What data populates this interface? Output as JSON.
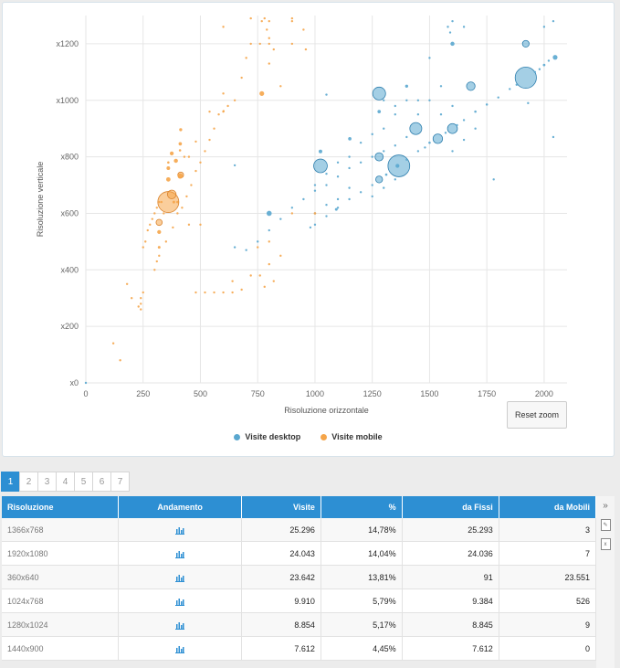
{
  "chart_data": {
    "type": "scatter",
    "xlabel": "Risoluzione orizzontale",
    "ylabel": "Risoluzione verticale",
    "xlim": [
      0,
      2100
    ],
    "ylim": [
      0,
      1300
    ],
    "x_ticks": [
      0,
      250,
      500,
      750,
      1000,
      1250,
      1500,
      1750,
      2000
    ],
    "y_ticks": [
      0,
      200,
      400,
      600,
      800,
      1000,
      1200
    ],
    "y_tick_labels": [
      "x0",
      "x200",
      "x400",
      "x600",
      "x800",
      "x1000",
      "x1200"
    ],
    "series": [
      {
        "name": "Visite desktop",
        "color": "#5aa7cf",
        "points": [
          [
            1366,
            768,
            25296
          ],
          [
            1920,
            1080,
            24043
          ],
          [
            1024,
            768,
            9910
          ],
          [
            1280,
            1024,
            8854
          ],
          [
            1440,
            900,
            7612
          ],
          [
            1600,
            900,
            5200
          ],
          [
            1536,
            864,
            4800
          ],
          [
            1680,
            1050,
            3900
          ],
          [
            1280,
            800,
            3600
          ],
          [
            1280,
            720,
            2500
          ],
          [
            1920,
            1200,
            2400
          ],
          [
            800,
            600,
            1400
          ],
          [
            2048,
            1152,
            1200
          ],
          [
            1600,
            1200,
            900
          ],
          [
            1024,
            819,
            700
          ],
          [
            1280,
            960,
            600
          ],
          [
            1400,
            1050,
            500
          ],
          [
            1360,
            768,
            800
          ],
          [
            1152,
            864,
            600
          ],
          [
            1093,
            614,
            400
          ],
          [
            1311,
            737,
            300
          ],
          [
            1500,
            850,
            300
          ],
          [
            1450,
            820,
            250
          ],
          [
            1250,
            700,
            220
          ],
          [
            1200,
            675,
            200
          ],
          [
            1150,
            650,
            180
          ],
          [
            1100,
            620,
            160
          ],
          [
            1050,
            590,
            150
          ],
          [
            1000,
            560,
            140
          ],
          [
            980,
            550,
            120
          ],
          [
            1700,
            960,
            300
          ],
          [
            1750,
            985,
            280
          ],
          [
            1800,
            1010,
            250
          ],
          [
            1850,
            1040,
            230
          ],
          [
            1880,
            1055,
            220
          ],
          [
            1650,
            930,
            260
          ],
          [
            1620,
            912,
            240
          ],
          [
            1570,
            885,
            220
          ],
          [
            1480,
            833,
            200
          ],
          [
            1400,
            790,
            190
          ],
          [
            2000,
            1125,
            350
          ],
          [
            1980,
            1110,
            200
          ],
          [
            1960,
            1100,
            180
          ],
          [
            2020,
            1140,
            160
          ],
          [
            2040,
            1280,
            120
          ],
          [
            2000,
            1260,
            110
          ],
          [
            1600,
            1280,
            100
          ],
          [
            1590,
            1240,
            100
          ],
          [
            1580,
            1260,
            100
          ],
          [
            1500,
            1150,
            100
          ],
          [
            1450,
            1000,
            120
          ],
          [
            1400,
            1000,
            100
          ],
          [
            1350,
            950,
            110
          ],
          [
            1300,
            900,
            100
          ],
          [
            1250,
            880,
            100
          ],
          [
            1200,
            850,
            100
          ],
          [
            1150,
            800,
            100
          ],
          [
            1100,
            780,
            100
          ],
          [
            1050,
            740,
            100
          ],
          [
            1000,
            700,
            100
          ],
          [
            950,
            650,
            100
          ],
          [
            900,
            620,
            100
          ],
          [
            850,
            580,
            100
          ],
          [
            800,
            540,
            100
          ],
          [
            750,
            500,
            100
          ],
          [
            700,
            470,
            100
          ],
          [
            650,
            480,
            100
          ],
          [
            1050,
            1020,
            100
          ],
          [
            1300,
            1000,
            100
          ],
          [
            1350,
            980,
            100
          ],
          [
            1400,
            870,
            100
          ],
          [
            1350,
            840,
            100
          ],
          [
            1300,
            820,
            100
          ],
          [
            1250,
            800,
            100
          ],
          [
            1200,
            780,
            100
          ],
          [
            1150,
            760,
            100
          ],
          [
            1100,
            730,
            100
          ],
          [
            1050,
            700,
            100
          ],
          [
            1000,
            680,
            100
          ],
          [
            1350,
            720,
            100
          ],
          [
            1300,
            690,
            100
          ],
          [
            1250,
            660,
            100
          ],
          [
            1600,
            820,
            100
          ],
          [
            1650,
            860,
            100
          ],
          [
            1700,
            900,
            100
          ],
          [
            1780,
            720,
            100
          ],
          [
            2040,
            870,
            120
          ],
          [
            1650,
            1260,
            100
          ],
          [
            1930,
            990,
            100
          ],
          [
            650,
            770,
            100
          ],
          [
            1000,
            600,
            100
          ],
          [
            1050,
            630,
            100
          ],
          [
            1100,
            650,
            100
          ],
          [
            1150,
            690,
            100
          ],
          [
            1550,
            950,
            100
          ],
          [
            1600,
            980,
            100
          ],
          [
            1500,
            1000,
            100
          ],
          [
            1550,
            1050,
            100
          ],
          [
            1450,
            950,
            100
          ],
          [
            0,
            0,
            100
          ]
        ]
      },
      {
        "name": "Visite mobile",
        "color": "#f5a54a",
        "points": [
          [
            360,
            640,
            23551
          ],
          [
            375,
            667,
            4000
          ],
          [
            320,
            568,
            2000
          ],
          [
            414,
            736,
            1800
          ],
          [
            412,
            732,
            1500
          ],
          [
            768,
            1024,
            1200
          ],
          [
            360,
            720,
            1000
          ],
          [
            393,
            786,
            900
          ],
          [
            320,
            534,
            800
          ],
          [
            375,
            812,
            800
          ],
          [
            360,
            760,
            700
          ],
          [
            412,
            846,
            600
          ],
          [
            414,
            896,
            500
          ],
          [
            320,
            480,
            400
          ],
          [
            384,
            640,
            400
          ],
          [
            400,
            640,
            300
          ],
          [
            360,
            780,
            300
          ],
          [
            411,
            823,
            300
          ],
          [
            1000,
            600,
            300
          ],
          [
            600,
            1024,
            250
          ],
          [
            601,
            962,
            250
          ],
          [
            800,
            1280,
            250
          ],
          [
            768,
            1280,
            200
          ],
          [
            640,
            360,
            200
          ],
          [
            800,
            1200,
            150
          ],
          [
            600,
            960,
            150
          ],
          [
            540,
            960,
            150
          ],
          [
            480,
            854,
            120
          ],
          [
            450,
            800,
            120
          ],
          [
            430,
            800,
            120
          ],
          [
            340,
            600,
            100
          ],
          [
            330,
            640,
            100
          ],
          [
            320,
            640,
            100
          ],
          [
            310,
            620,
            100
          ],
          [
            300,
            600,
            100
          ],
          [
            290,
            580,
            100
          ],
          [
            280,
            560,
            100
          ],
          [
            270,
            540,
            100
          ],
          [
            260,
            500,
            100
          ],
          [
            250,
            480,
            100
          ],
          [
            240,
            300,
            100
          ],
          [
            240,
            280,
            100
          ],
          [
            240,
            260,
            100
          ],
          [
            250,
            320,
            100
          ],
          [
            230,
            270,
            100
          ],
          [
            150,
            80,
            100
          ],
          [
            120,
            140,
            100
          ],
          [
            300,
            400,
            100
          ],
          [
            310,
            430,
            100
          ],
          [
            320,
            450,
            100
          ],
          [
            350,
            500,
            100
          ],
          [
            380,
            550,
            100
          ],
          [
            400,
            600,
            100
          ],
          [
            420,
            620,
            100
          ],
          [
            440,
            660,
            100
          ],
          [
            460,
            700,
            100
          ],
          [
            480,
            750,
            100
          ],
          [
            500,
            780,
            100
          ],
          [
            520,
            820,
            100
          ],
          [
            540,
            860,
            100
          ],
          [
            560,
            900,
            100
          ],
          [
            580,
            950,
            100
          ],
          [
            620,
            980,
            100
          ],
          [
            650,
            1000,
            100
          ],
          [
            680,
            1080,
            100
          ],
          [
            700,
            1150,
            100
          ],
          [
            720,
            1200,
            100
          ],
          [
            760,
            1200,
            100
          ],
          [
            790,
            1250,
            100
          ],
          [
            800,
            1220,
            100
          ],
          [
            820,
            1180,
            100
          ],
          [
            800,
            1130,
            100
          ],
          [
            850,
            1050,
            100
          ],
          [
            900,
            1280,
            100
          ],
          [
            900,
            1200,
            100
          ],
          [
            960,
            1180,
            100
          ],
          [
            950,
            1250,
            100
          ],
          [
            900,
            1290,
            100
          ],
          [
            600,
            320,
            100
          ],
          [
            560,
            320,
            100
          ],
          [
            520,
            320,
            100
          ],
          [
            480,
            320,
            100
          ],
          [
            640,
            320,
            100
          ],
          [
            680,
            330,
            100
          ],
          [
            720,
            380,
            100
          ],
          [
            760,
            380,
            100
          ],
          [
            800,
            420,
            100
          ],
          [
            850,
            450,
            100
          ],
          [
            750,
            480,
            100
          ],
          [
            800,
            500,
            100
          ],
          [
            820,
            360,
            100
          ],
          [
            780,
            340,
            100
          ],
          [
            900,
            600,
            100
          ],
          [
            450,
            560,
            100
          ],
          [
            500,
            560,
            100
          ],
          [
            180,
            350,
            100
          ],
          [
            200,
            300,
            100
          ],
          [
            600,
            1260,
            100
          ],
          [
            720,
            1290,
            100
          ],
          [
            780,
            1290,
            100
          ]
        ]
      }
    ]
  },
  "chart": {
    "reset_zoom_label": "Reset zoom"
  },
  "pagination": {
    "pages": [
      "1",
      "2",
      "3",
      "4",
      "5",
      "6",
      "7"
    ],
    "active": 0
  },
  "table": {
    "headers": [
      "Risoluzione",
      "Andamento",
      "Visite",
      "%",
      "da Fissi",
      "da Mobili"
    ],
    "rows": [
      {
        "res": "1366x768",
        "visite": "25.296",
        "pct": "14,78%",
        "fissi": "25.293",
        "mobili": "3"
      },
      {
        "res": "1920x1080",
        "visite": "24.043",
        "pct": "14,04%",
        "fissi": "24.036",
        "mobili": "7"
      },
      {
        "res": "360x640",
        "visite": "23.642",
        "pct": "13,81%",
        "fissi": "91",
        "mobili": "23.551"
      },
      {
        "res": "1024x768",
        "visite": "9.910",
        "pct": "5,79%",
        "fissi": "9.384",
        "mobili": "526"
      },
      {
        "res": "1280x1024",
        "visite": "8.854",
        "pct": "5,17%",
        "fissi": "8.845",
        "mobili": "9"
      },
      {
        "res": "1440x900",
        "visite": "7.612",
        "pct": "4,45%",
        "fissi": "7.612",
        "mobili": "0"
      }
    ]
  },
  "tools": {
    "expand_icon": "double-chevron-right-icon",
    "pdf_icon": "pdf-file-icon",
    "excel_icon": "excel-file-icon",
    "expand_glyph": "»"
  }
}
